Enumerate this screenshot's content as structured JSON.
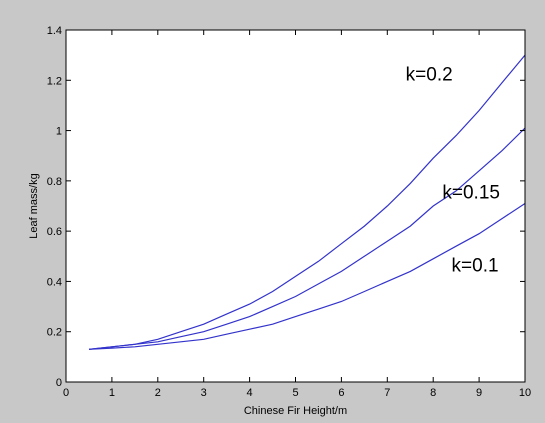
{
  "chart_data": {
    "type": "line",
    "title": "",
    "xlabel": "Chinese Fir Height/m",
    "ylabel": "Leaf mass/kg",
    "xlim": [
      0,
      10
    ],
    "ylim": [
      0,
      1.4
    ],
    "xticks": [
      "0",
      "1",
      "2",
      "3",
      "4",
      "5",
      "6",
      "7",
      "8",
      "9",
      "10"
    ],
    "yticks": [
      "0",
      "0.2",
      "0.4",
      "0.6",
      "0.8",
      "1",
      "1.2",
      "1.4"
    ],
    "grid": false,
    "series": [
      {
        "name": "k=0.2",
        "x": [
          0.5,
          1,
          1.5,
          2,
          2.5,
          3,
          3.5,
          4,
          4.5,
          5,
          5.5,
          6,
          6.5,
          7,
          7.5,
          8,
          8.5,
          9,
          9.5,
          10
        ],
        "y": [
          0.13,
          0.14,
          0.15,
          0.17,
          0.2,
          0.23,
          0.27,
          0.31,
          0.36,
          0.42,
          0.48,
          0.55,
          0.62,
          0.7,
          0.79,
          0.89,
          0.98,
          1.08,
          1.19,
          1.3
        ]
      },
      {
        "name": "k=0.15",
        "x": [
          0.5,
          1,
          1.5,
          2,
          2.5,
          3,
          3.5,
          4,
          4.5,
          5,
          5.5,
          6,
          6.5,
          7,
          7.5,
          8,
          8.5,
          9,
          9.5,
          10
        ],
        "y": [
          0.13,
          0.14,
          0.15,
          0.16,
          0.18,
          0.2,
          0.23,
          0.26,
          0.3,
          0.34,
          0.39,
          0.44,
          0.5,
          0.56,
          0.62,
          0.7,
          0.76,
          0.84,
          0.92,
          1.01
        ]
      },
      {
        "name": "k=0.1",
        "x": [
          0.5,
          1,
          1.5,
          2,
          2.5,
          3,
          3.5,
          4,
          4.5,
          5,
          5.5,
          6,
          6.5,
          7,
          7.5,
          8,
          8.5,
          9,
          9.5,
          10
        ],
        "y": [
          0.13,
          0.135,
          0.14,
          0.15,
          0.16,
          0.17,
          0.19,
          0.21,
          0.23,
          0.26,
          0.29,
          0.32,
          0.36,
          0.4,
          0.44,
          0.49,
          0.54,
          0.59,
          0.65,
          0.71
        ]
      }
    ],
    "annotations": [
      {
        "text": "k=0.2",
        "x": 7.4,
        "y": 1.2
      },
      {
        "text": "k=0.15",
        "x": 8.2,
        "y": 0.73
      },
      {
        "text": "k=0.1",
        "x": 8.4,
        "y": 0.44
      }
    ],
    "colors": {
      "figure_bg": "#c8c8c8",
      "axes_bg": "#ffffff",
      "line": "#3333cc",
      "axis": "#000000",
      "text": "#000000"
    }
  }
}
